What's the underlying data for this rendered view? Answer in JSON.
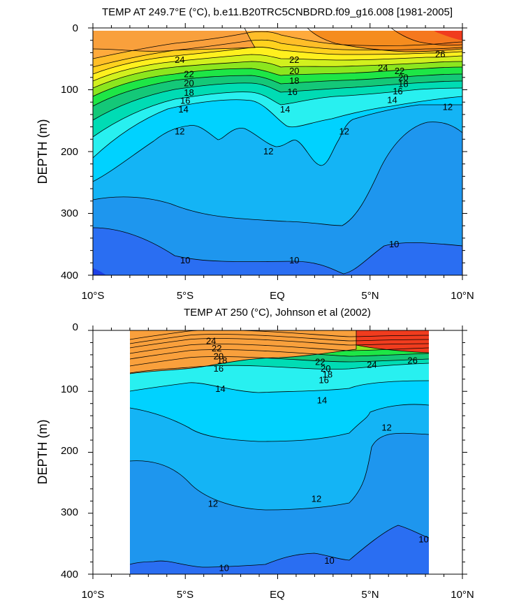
{
  "chart_data": [
    {
      "type": "contour",
      "title": "TEMP AT 249.7°E (°C), b.e11.B20TRC5CNBDRD.f09_g16.008 [1981-2005]",
      "xlabel": "",
      "ylabel": "DEPTH (m)",
      "xlim": [
        -10,
        10
      ],
      "ylim": [
        0,
        400
      ],
      "y_inverted": true,
      "x_ticks": [
        -10,
        -5,
        0,
        5,
        10
      ],
      "x_tick_labels": [
        "10°S",
        "5°S",
        "EQ",
        "5°N",
        "10°N"
      ],
      "y_ticks": [
        0,
        100,
        200,
        300,
        400
      ],
      "y_tick_labels": [
        "0",
        "100",
        "200",
        "300",
        "400"
      ],
      "data_x_range": [
        -10,
        10
      ],
      "data_depth_range": [
        5,
        400
      ],
      "colors": {
        "lt10": "#1c3fe6",
        "10": "#2a6ef2",
        "11": "#1e96ee",
        "12": "#14b4f5",
        "13": "#00d2ff",
        "14": "#28f0f0",
        "15": "#00dcb4",
        "16": "#14c878",
        "17": "#1ee646",
        "18": "#8ce61e",
        "19": "#d2f01e",
        "20": "#fff01e",
        "21": "#ffd21e",
        "22": "#ffbe28",
        "23": "#ffaa3c",
        "24": "#f9a03c",
        "25": "#f58c1e",
        "26": "#f5781e",
        "27": "#f03c1e"
      },
      "contour_labels": [
        {
          "text": "24",
          "lat": -5.3,
          "depth": 52
        },
        {
          "text": "22",
          "lat": -4.8,
          "depth": 75
        },
        {
          "text": "20",
          "lat": -4.8,
          "depth": 90
        },
        {
          "text": "18",
          "lat": -4.8,
          "depth": 105
        },
        {
          "text": "16",
          "lat": -5.0,
          "depth": 118
        },
        {
          "text": "14",
          "lat": -5.1,
          "depth": 132
        },
        {
          "text": "22",
          "lat": 0.9,
          "depth": 52
        },
        {
          "text": "20",
          "lat": 0.9,
          "depth": 70
        },
        {
          "text": "18",
          "lat": 0.9,
          "depth": 86
        },
        {
          "text": "16",
          "lat": 0.8,
          "depth": 104
        },
        {
          "text": "14",
          "lat": 0.4,
          "depth": 132
        },
        {
          "text": "12",
          "lat": -5.3,
          "depth": 168
        },
        {
          "text": "12",
          "lat": -0.5,
          "depth": 200
        },
        {
          "text": "12",
          "lat": 3.6,
          "depth": 168
        },
        {
          "text": "26",
          "lat": 8.8,
          "depth": 43
        },
        {
          "text": "24",
          "lat": 5.7,
          "depth": 65
        },
        {
          "text": "22",
          "lat": 6.6,
          "depth": 70
        },
        {
          "text": "20",
          "lat": 6.8,
          "depth": 81
        },
        {
          "text": "18",
          "lat": 6.8,
          "depth": 91
        },
        {
          "text": "16",
          "lat": 6.5,
          "depth": 103
        },
        {
          "text": "14",
          "lat": 6.2,
          "depth": 117
        },
        {
          "text": "12",
          "lat": 9.2,
          "depth": 128
        },
        {
          "text": "10",
          "lat": -5.0,
          "depth": 376
        },
        {
          "text": "10",
          "lat": 0.9,
          "depth": 376
        },
        {
          "text": "10",
          "lat": 6.3,
          "depth": 350
        }
      ]
    },
    {
      "type": "contour",
      "title": "TEMP AT 250 (°C), Johnson et al (2002)",
      "xlabel": "",
      "ylabel": "DEPTH (m)",
      "xlim": [
        -10,
        10
      ],
      "ylim": [
        0,
        400
      ],
      "y_inverted": true,
      "x_ticks": [
        -10,
        -5,
        0,
        5,
        10
      ],
      "x_tick_labels": [
        "10°S",
        "5°S",
        "EQ",
        "5°N",
        "10°N"
      ],
      "y_ticks": [
        0,
        100,
        200,
        300,
        400
      ],
      "y_tick_labels": [
        "0",
        "100",
        "200",
        "300",
        "400"
      ],
      "data_x_range": [
        -8,
        8.1
      ],
      "data_depth_range": [
        5,
        400
      ],
      "colors": {
        "lt10": "#1c3fe6",
        "10": "#2a6ef2",
        "11": "#1e96ee",
        "12": "#14b4f5",
        "13": "#00d2ff",
        "14": "#28f0f0",
        "15": "#00dcb4",
        "16": "#14c878",
        "17": "#1ee646",
        "18": "#8ce61e",
        "19": "#d2f01e",
        "20": "#fff01e",
        "21": "#ffd21e",
        "22": "#ffbe28",
        "23": "#ffaa3c",
        "24": "#f9a03c",
        "25": "#f58c1e",
        "26": "#f5781e",
        "27": "#f03c1e"
      },
      "contour_labels": [
        {
          "text": "24",
          "lat": -3.6,
          "depth": 18
        },
        {
          "text": "22",
          "lat": -3.3,
          "depth": 30
        },
        {
          "text": "20",
          "lat": -3.2,
          "depth": 43
        },
        {
          "text": "18",
          "lat": -3.0,
          "depth": 50
        },
        {
          "text": "16",
          "lat": -3.2,
          "depth": 63
        },
        {
          "text": "14",
          "lat": -3.1,
          "depth": 96
        },
        {
          "text": "22",
          "lat": 2.3,
          "depth": 52
        },
        {
          "text": "20",
          "lat": 2.6,
          "depth": 63
        },
        {
          "text": "18",
          "lat": 2.7,
          "depth": 73
        },
        {
          "text": "16",
          "lat": 2.5,
          "depth": 82
        },
        {
          "text": "14",
          "lat": 2.4,
          "depth": 115
        },
        {
          "text": "24",
          "lat": 5.1,
          "depth": 57
        },
        {
          "text": "26",
          "lat": 7.3,
          "depth": 50
        },
        {
          "text": "12",
          "lat": 5.9,
          "depth": 160
        },
        {
          "text": "12",
          "lat": -3.5,
          "depth": 285
        },
        {
          "text": "12",
          "lat": 2.1,
          "depth": 277
        },
        {
          "text": "10",
          "lat": -2.9,
          "depth": 390
        },
        {
          "text": "10",
          "lat": 2.8,
          "depth": 378
        },
        {
          "text": "10",
          "lat": 7.9,
          "depth": 343
        }
      ]
    }
  ]
}
